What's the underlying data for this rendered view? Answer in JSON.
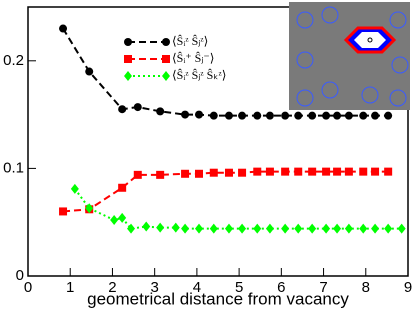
{
  "chart_data": {
    "type": "line",
    "xlabel": "geometrical distance from vacancy",
    "xlim": [
      0,
      9
    ],
    "xticks": [
      0,
      1,
      2,
      3,
      4,
      5,
      6,
      7,
      8,
      9
    ],
    "ylim": [
      0,
      0.25
    ],
    "yticks": [
      0,
      0.1,
      0.2
    ],
    "series": [
      {
        "name": "⟨Ŝᵢᶻ Ŝⱼᶻ⟩",
        "color": "#000000",
        "dash": "dashed",
        "marker": "circle",
        "x": [
          0.83,
          1.45,
          2.23,
          2.6,
          3.13,
          3.72,
          4.05,
          4.4,
          4.76,
          5.07,
          5.43,
          5.73,
          6.09,
          6.4,
          6.73,
          7.06,
          7.32,
          7.6,
          7.94,
          8.22,
          8.53
        ],
        "values": [
          0.23,
          0.19,
          0.155,
          0.157,
          0.153,
          0.15,
          0.15,
          0.149,
          0.149,
          0.149,
          0.149,
          0.149,
          0.149,
          0.149,
          0.149,
          0.149,
          0.149,
          0.149,
          0.149,
          0.149,
          0.149
        ]
      },
      {
        "name": "⟨Ŝᵢ⁺ Ŝⱼ⁻⟩",
        "color": "#ff0000",
        "dash": "dashed",
        "marker": "square",
        "x": [
          0.83,
          1.45,
          2.23,
          2.6,
          3.13,
          3.72,
          4.05,
          4.4,
          4.76,
          5.07,
          5.43,
          5.73,
          6.09,
          6.4,
          6.73,
          7.06,
          7.32,
          7.6,
          7.94,
          8.22,
          8.53
        ],
        "values": [
          0.06,
          0.062,
          0.082,
          0.094,
          0.094,
          0.095,
          0.095,
          0.096,
          0.096,
          0.096,
          0.097,
          0.097,
          0.097,
          0.097,
          0.097,
          0.097,
          0.097,
          0.097,
          0.097,
          0.097,
          0.097
        ]
      },
      {
        "name": "⟨Ŝᵢᶻ Ŝⱼᶻ Ŝₖᶻ⟩",
        "color": "#00ff00",
        "dash": "dotted",
        "marker": "diamond",
        "x": [
          1.11,
          1.45,
          2.04,
          2.23,
          2.44,
          2.8,
          3.13,
          3.5,
          3.72,
          4.05,
          4.4,
          4.76,
          5.07,
          5.43,
          5.73,
          6.09,
          6.4,
          6.73,
          7.06,
          7.32,
          7.6,
          7.94,
          8.22,
          8.53,
          8.85
        ],
        "values": [
          0.081,
          0.063,
          0.052,
          0.054,
          0.044,
          0.046,
          0.045,
          0.045,
          0.044,
          0.044,
          0.044,
          0.044,
          0.044,
          0.044,
          0.044,
          0.044,
          0.044,
          0.044,
          0.044,
          0.044,
          0.044,
          0.044,
          0.044,
          0.044,
          0.044
        ]
      }
    ]
  }
}
